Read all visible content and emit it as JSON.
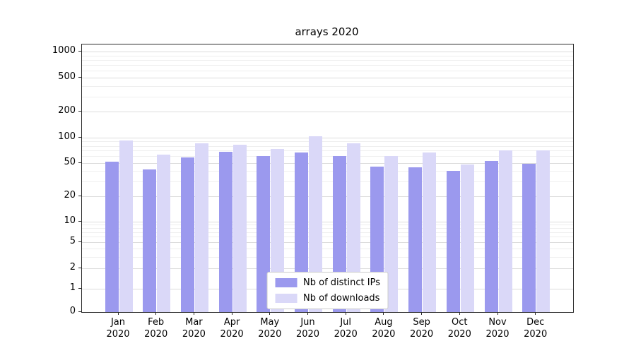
{
  "chart_data": {
    "type": "bar",
    "title": "arrays 2020",
    "xlabel": "",
    "ylabel": "",
    "yscale": "symlog",
    "grid": true,
    "legend_position": "lower center",
    "ylim": [
      0,
      1500
    ],
    "yticks": [
      0,
      1,
      2,
      5,
      10,
      20,
      50,
      100,
      200,
      500,
      1000
    ],
    "categories": [
      "Jan 2020",
      "Feb 2020",
      "Mar 2020",
      "Apr 2020",
      "May 2020",
      "Jun 2020",
      "Jul 2020",
      "Aug 2020",
      "Sep 2020",
      "Oct 2020",
      "Nov 2020",
      "Dec 2020"
    ],
    "series": [
      {
        "name": "Nb of distinct IPs",
        "color": "#9b99ee",
        "values": [
          52,
          42,
          58,
          68,
          61,
          66,
          61,
          45,
          44,
          40,
          53,
          49
        ]
      },
      {
        "name": "Nb of downloads",
        "color": "#dad8f8",
        "values": [
          92,
          63,
          86,
          83,
          73,
          104,
          85,
          60,
          66,
          48,
          71,
          70
        ]
      }
    ]
  }
}
